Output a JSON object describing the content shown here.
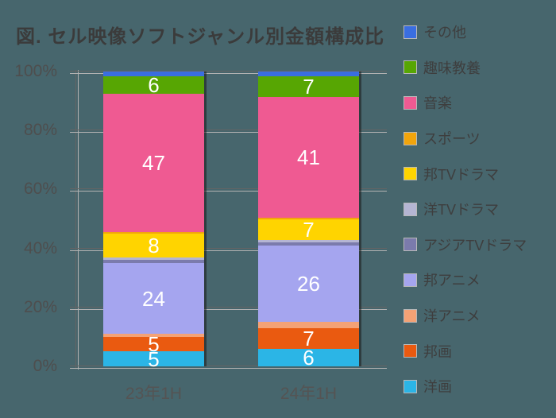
{
  "title": "図. セル映像ソフトジャンル別金額構成比",
  "colors": {
    "background": "#47666D",
    "title_text": "#3B3B3B",
    "axis_text": "#4E4E4E",
    "grid_dark": "#646464",
    "grid_light": "#B2B2B2",
    "value_label": "#FFFFFF"
  },
  "y_axis": {
    "labels": [
      "100%",
      "80%",
      "60%",
      "40%",
      "20%",
      "0%"
    ]
  },
  "x_axis": {
    "categories": [
      "23年1H",
      "24年1H"
    ]
  },
  "legend": {
    "position": "right",
    "items": [
      {
        "id": "other",
        "label": "その他",
        "color": "#3A6EE0"
      },
      {
        "id": "hobby-culture",
        "label": "趣味教養",
        "color": "#57A603"
      },
      {
        "id": "music",
        "label": "音楽",
        "color": "#EF5A92"
      },
      {
        "id": "sports",
        "label": "スポーツ",
        "color": "#F2A50C"
      },
      {
        "id": "jp-tv-drama",
        "label": "邦TVドラマ",
        "color": "#FFD400"
      },
      {
        "id": "west-tv-drama",
        "label": "洋TVドラマ",
        "color": "#B5B5D3"
      },
      {
        "id": "asia-tv-drama",
        "label": "アジアTVドラマ",
        "color": "#7B7BAC"
      },
      {
        "id": "jp-anime",
        "label": "邦アニメ",
        "color": "#A5A5EF"
      },
      {
        "id": "west-anime",
        "label": "洋アニメ",
        "color": "#F4A275"
      },
      {
        "id": "jp-movie",
        "label": "邦画",
        "color": "#EA5A10"
      },
      {
        "id": "west-movie",
        "label": "洋画",
        "color": "#2BB5E6"
      }
    ]
  },
  "chart_data": {
    "type": "bar",
    "variant": "100-percent-stacked-column",
    "title": "図. セル映像ソフトジャンル別金額構成比",
    "categories": [
      "23年1H",
      "24年1H"
    ],
    "ylim": [
      0,
      100
    ],
    "grid": "horizontal lines every 20%",
    "legend_position": "right",
    "value_labels_rule": "white number shown inside segments of about 5% or more",
    "series_order": "bottom-to-top",
    "series": [
      {
        "id": "west-movie",
        "name": "洋画",
        "values": [
          5,
          6
        ]
      },
      {
        "id": "jp-movie",
        "name": "邦画",
        "values": [
          5,
          7
        ]
      },
      {
        "id": "west-anime",
        "name": "洋アニメ",
        "values": [
          1,
          2
        ]
      },
      {
        "id": "jp-anime",
        "name": "邦アニメ",
        "values": [
          24,
          26
        ]
      },
      {
        "id": "asia-tv-drama",
        "name": "アジアTVドラマ",
        "values": [
          1,
          1
        ]
      },
      {
        "id": "west-tv-drama",
        "name": "洋TVドラマ",
        "values": [
          1,
          1
        ]
      },
      {
        "id": "jp-tv-drama",
        "name": "邦TVドラマ",
        "values": [
          8,
          7
        ]
      },
      {
        "id": "sports",
        "name": "スポーツ",
        "values": [
          0.5,
          0.5
        ]
      },
      {
        "id": "music",
        "name": "音楽",
        "values": [
          47,
          41
        ]
      },
      {
        "id": "hobby-culture",
        "name": "趣味教養",
        "values": [
          6,
          7
        ]
      },
      {
        "id": "other",
        "name": "その他",
        "values": [
          1.5,
          1.5
        ]
      }
    ]
  }
}
